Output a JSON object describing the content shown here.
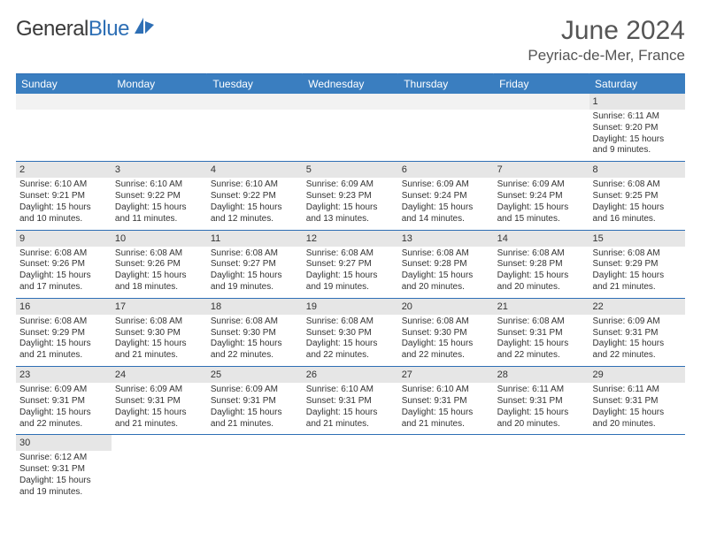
{
  "logo": {
    "part1": "General",
    "part2": "Blue"
  },
  "title": "June 2024",
  "location": "Peyriac-de-Mer, France",
  "colors": {
    "header_bg": "#3a7ec0",
    "accent_border": "#2e6fb5",
    "daynum_bg": "#e6e6e6",
    "blank_bg": "#f2f2f2",
    "text": "#333333",
    "title_text": "#555555"
  },
  "typography": {
    "title_fontsize": 30,
    "location_fontsize": 17,
    "header_fontsize": 12,
    "cell_fontsize": 10,
    "font_family": "Arial"
  },
  "calendar": {
    "columns": [
      "Sunday",
      "Monday",
      "Tuesday",
      "Wednesday",
      "Thursday",
      "Friday",
      "Saturday"
    ],
    "first_weekday_index": 6,
    "days": [
      {
        "n": 1,
        "sunrise": "6:11 AM",
        "sunset": "9:20 PM",
        "daylight": "15 hours and 9 minutes."
      },
      {
        "n": 2,
        "sunrise": "6:10 AM",
        "sunset": "9:21 PM",
        "daylight": "15 hours and 10 minutes."
      },
      {
        "n": 3,
        "sunrise": "6:10 AM",
        "sunset": "9:22 PM",
        "daylight": "15 hours and 11 minutes."
      },
      {
        "n": 4,
        "sunrise": "6:10 AM",
        "sunset": "9:22 PM",
        "daylight": "15 hours and 12 minutes."
      },
      {
        "n": 5,
        "sunrise": "6:09 AM",
        "sunset": "9:23 PM",
        "daylight": "15 hours and 13 minutes."
      },
      {
        "n": 6,
        "sunrise": "6:09 AM",
        "sunset": "9:24 PM",
        "daylight": "15 hours and 14 minutes."
      },
      {
        "n": 7,
        "sunrise": "6:09 AM",
        "sunset": "9:24 PM",
        "daylight": "15 hours and 15 minutes."
      },
      {
        "n": 8,
        "sunrise": "6:08 AM",
        "sunset": "9:25 PM",
        "daylight": "15 hours and 16 minutes."
      },
      {
        "n": 9,
        "sunrise": "6:08 AM",
        "sunset": "9:26 PM",
        "daylight": "15 hours and 17 minutes."
      },
      {
        "n": 10,
        "sunrise": "6:08 AM",
        "sunset": "9:26 PM",
        "daylight": "15 hours and 18 minutes."
      },
      {
        "n": 11,
        "sunrise": "6:08 AM",
        "sunset": "9:27 PM",
        "daylight": "15 hours and 19 minutes."
      },
      {
        "n": 12,
        "sunrise": "6:08 AM",
        "sunset": "9:27 PM",
        "daylight": "15 hours and 19 minutes."
      },
      {
        "n": 13,
        "sunrise": "6:08 AM",
        "sunset": "9:28 PM",
        "daylight": "15 hours and 20 minutes."
      },
      {
        "n": 14,
        "sunrise": "6:08 AM",
        "sunset": "9:28 PM",
        "daylight": "15 hours and 20 minutes."
      },
      {
        "n": 15,
        "sunrise": "6:08 AM",
        "sunset": "9:29 PM",
        "daylight": "15 hours and 21 minutes."
      },
      {
        "n": 16,
        "sunrise": "6:08 AM",
        "sunset": "9:29 PM",
        "daylight": "15 hours and 21 minutes."
      },
      {
        "n": 17,
        "sunrise": "6:08 AM",
        "sunset": "9:30 PM",
        "daylight": "15 hours and 21 minutes."
      },
      {
        "n": 18,
        "sunrise": "6:08 AM",
        "sunset": "9:30 PM",
        "daylight": "15 hours and 22 minutes."
      },
      {
        "n": 19,
        "sunrise": "6:08 AM",
        "sunset": "9:30 PM",
        "daylight": "15 hours and 22 minutes."
      },
      {
        "n": 20,
        "sunrise": "6:08 AM",
        "sunset": "9:30 PM",
        "daylight": "15 hours and 22 minutes."
      },
      {
        "n": 21,
        "sunrise": "6:08 AM",
        "sunset": "9:31 PM",
        "daylight": "15 hours and 22 minutes."
      },
      {
        "n": 22,
        "sunrise": "6:09 AM",
        "sunset": "9:31 PM",
        "daylight": "15 hours and 22 minutes."
      },
      {
        "n": 23,
        "sunrise": "6:09 AM",
        "sunset": "9:31 PM",
        "daylight": "15 hours and 22 minutes."
      },
      {
        "n": 24,
        "sunrise": "6:09 AM",
        "sunset": "9:31 PM",
        "daylight": "15 hours and 21 minutes."
      },
      {
        "n": 25,
        "sunrise": "6:09 AM",
        "sunset": "9:31 PM",
        "daylight": "15 hours and 21 minutes."
      },
      {
        "n": 26,
        "sunrise": "6:10 AM",
        "sunset": "9:31 PM",
        "daylight": "15 hours and 21 minutes."
      },
      {
        "n": 27,
        "sunrise": "6:10 AM",
        "sunset": "9:31 PM",
        "daylight": "15 hours and 21 minutes."
      },
      {
        "n": 28,
        "sunrise": "6:11 AM",
        "sunset": "9:31 PM",
        "daylight": "15 hours and 20 minutes."
      },
      {
        "n": 29,
        "sunrise": "6:11 AM",
        "sunset": "9:31 PM",
        "daylight": "15 hours and 20 minutes."
      },
      {
        "n": 30,
        "sunrise": "6:12 AM",
        "sunset": "9:31 PM",
        "daylight": "15 hours and 19 minutes."
      }
    ],
    "labels": {
      "sunrise": "Sunrise:",
      "sunset": "Sunset:",
      "daylight": "Daylight:"
    }
  }
}
